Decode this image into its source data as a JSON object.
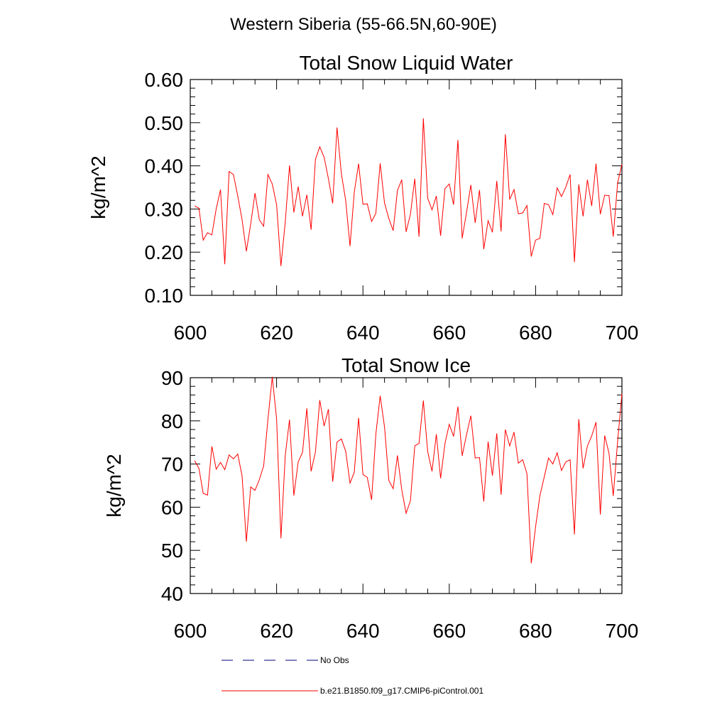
{
  "figure": {
    "main_title": "Western Siberia (55-66.5N,60-90E)"
  },
  "legend": {
    "items": [
      {
        "label": "No Obs",
        "color": "#000080",
        "dash": true
      },
      {
        "label": "b.e21.B1850.f09_g17.CMIP6-piControl.001",
        "color": "#ff0000",
        "dash": false
      }
    ]
  },
  "chart_data": [
    {
      "type": "line",
      "title": "Total Snow Liquid Water",
      "ylabel": "kg/m^2",
      "xlim": [
        600,
        700
      ],
      "ylim": [
        0.1,
        0.6
      ],
      "xticks": [
        600,
        620,
        640,
        660,
        680,
        700
      ],
      "xtick_labels": [
        "600",
        "620",
        "640",
        "660",
        "680",
        "700"
      ],
      "yticks": [
        0.1,
        0.2,
        0.3,
        0.4,
        0.5,
        0.6
      ],
      "ytick_labels": [
        "0.10",
        "0.20",
        "0.30",
        "0.40",
        "0.50",
        "0.60"
      ],
      "color": "#ff0000",
      "x": [
        601,
        602,
        603,
        604,
        605,
        606,
        607,
        608,
        609,
        610,
        611,
        612,
        613,
        614,
        615,
        616,
        617,
        618,
        619,
        620,
        621,
        622,
        623,
        624,
        625,
        626,
        627,
        628,
        629,
        630,
        631,
        632,
        633,
        634,
        635,
        636,
        637,
        638,
        639,
        640,
        641,
        642,
        643,
        644,
        645,
        646,
        647,
        648,
        649,
        650,
        651,
        652,
        653,
        654,
        655,
        656,
        657,
        658,
        659,
        660,
        661,
        662,
        663,
        664,
        665,
        666,
        667,
        668,
        669,
        670,
        671,
        672,
        673,
        674,
        675,
        676,
        677,
        678,
        679,
        680,
        681,
        682,
        683,
        684,
        685,
        686,
        687,
        688,
        689,
        690,
        691,
        692,
        693,
        694,
        695,
        696,
        697,
        698,
        699,
        700
      ],
      "y": [
        0.307,
        0.302,
        0.228,
        0.245,
        0.24,
        0.3,
        0.345,
        0.172,
        0.387,
        0.38,
        0.33,
        0.275,
        0.202,
        0.265,
        0.337,
        0.275,
        0.26,
        0.38,
        0.358,
        0.31,
        0.168,
        0.27,
        0.401,
        0.292,
        0.352,
        0.283,
        0.333,
        0.252,
        0.415,
        0.444,
        0.42,
        0.37,
        0.313,
        0.489,
        0.382,
        0.32,
        0.214,
        0.339,
        0.405,
        0.311,
        0.312,
        0.271,
        0.29,
        0.406,
        0.314,
        0.278,
        0.25,
        0.343,
        0.368,
        0.247,
        0.288,
        0.37,
        0.236,
        0.51,
        0.325,
        0.298,
        0.33,
        0.238,
        0.347,
        0.358,
        0.31,
        0.46,
        0.232,
        0.292,
        0.356,
        0.268,
        0.344,
        0.207,
        0.273,
        0.246,
        0.365,
        0.248,
        0.473,
        0.322,
        0.345,
        0.289,
        0.291,
        0.308,
        0.19,
        0.228,
        0.232,
        0.313,
        0.31,
        0.287,
        0.349,
        0.329,
        0.351,
        0.38,
        0.177,
        0.357,
        0.283,
        0.368,
        0.307,
        0.405,
        0.288,
        0.332,
        0.331,
        0.236,
        0.36,
        0.404
      ]
    },
    {
      "type": "line",
      "title": "Total Snow Ice",
      "ylabel": "kg/m^2",
      "xlim": [
        600,
        700
      ],
      "ylim": [
        40,
        90
      ],
      "xticks": [
        600,
        620,
        640,
        660,
        680,
        700
      ],
      "xtick_labels": [
        "600",
        "620",
        "640",
        "660",
        "680",
        "700"
      ],
      "yticks": [
        40,
        50,
        60,
        70,
        80,
        90
      ],
      "ytick_labels": [
        "40",
        "50",
        "60",
        "70",
        "80",
        "90"
      ],
      "color": "#ff0000",
      "x": [
        601,
        602,
        603,
        604,
        605,
        606,
        607,
        608,
        609,
        610,
        611,
        612,
        613,
        614,
        615,
        616,
        617,
        618,
        619,
        620,
        621,
        622,
        623,
        624,
        625,
        626,
        627,
        628,
        629,
        630,
        631,
        632,
        633,
        634,
        635,
        636,
        637,
        638,
        639,
        640,
        641,
        642,
        643,
        644,
        645,
        646,
        647,
        648,
        649,
        650,
        651,
        652,
        653,
        654,
        655,
        656,
        657,
        658,
        659,
        660,
        661,
        662,
        663,
        664,
        665,
        666,
        667,
        668,
        669,
        670,
        671,
        672,
        673,
        674,
        675,
        676,
        677,
        678,
        679,
        680,
        681,
        682,
        683,
        684,
        685,
        686,
        687,
        688,
        689,
        690,
        691,
        692,
        693,
        694,
        695,
        696,
        697,
        698,
        699,
        700
      ],
      "y": [
        70.8,
        69.0,
        63.2,
        62.8,
        74.1,
        68.8,
        70.4,
        68.7,
        72.1,
        71.2,
        72.3,
        67.2,
        52.0,
        64.7,
        63.9,
        66.4,
        69.6,
        80.4,
        90.2,
        80.5,
        52.8,
        72.0,
        80.3,
        62.7,
        70.5,
        72.7,
        82.9,
        68.3,
        72.8,
        84.8,
        78.8,
        82.7,
        65.9,
        75.1,
        75.8,
        73.0,
        65.6,
        68.1,
        80.7,
        67.6,
        66.9,
        61.7,
        76.9,
        85.8,
        78.6,
        66.2,
        64.3,
        72.0,
        64.0,
        58.6,
        61.5,
        74.2,
        74.8,
        84.7,
        72.9,
        68.3,
        76.9,
        66.7,
        74.7,
        79.2,
        76.4,
        83.3,
        71.9,
        76.8,
        81.2,
        71.4,
        71.5,
        61.3,
        75.2,
        67.3,
        77.1,
        62.9,
        78.0,
        74.2,
        77.4,
        70.2,
        71.0,
        67.8,
        47.0,
        55.5,
        62.7,
        67.0,
        71.4,
        70.0,
        72.6,
        68.5,
        70.5,
        71.0,
        53.7,
        80.4,
        69.0,
        74.2,
        76.5,
        79.7,
        58.3,
        76.6,
        72.5,
        62.6,
        75.2,
        86.3
      ]
    }
  ]
}
